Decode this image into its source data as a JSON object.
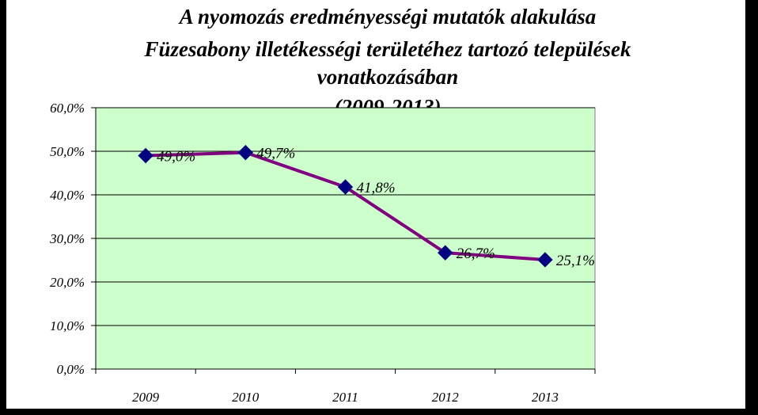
{
  "chart_data": {
    "type": "line",
    "title": [
      "A nyomozás eredményességi mutatók alakulása",
      "Füzesabony illetékességi területéhez tartozó települések",
      "vonatkozásában",
      "(2009-2013)"
    ],
    "categories": [
      "2009",
      "2010",
      "2011",
      "2012",
      "2013"
    ],
    "values": [
      49.0,
      49.7,
      41.8,
      26.7,
      25.1
    ],
    "data_labels": [
      "49,0%",
      "49,7%",
      "41,8%",
      "26,7%",
      "25,1%"
    ],
    "y_ticks": [
      "0,0%",
      "10,0%",
      "20,0%",
      "30,0%",
      "40,0%",
      "50,0%",
      "60,0%"
    ],
    "ylim": [
      0,
      60
    ],
    "grid": true,
    "legend": "none",
    "colors": {
      "plot_background": "#ccffcc",
      "line": "#800080",
      "marker": "#000080",
      "gridline": "#000000",
      "frame_border": "#000000"
    }
  }
}
